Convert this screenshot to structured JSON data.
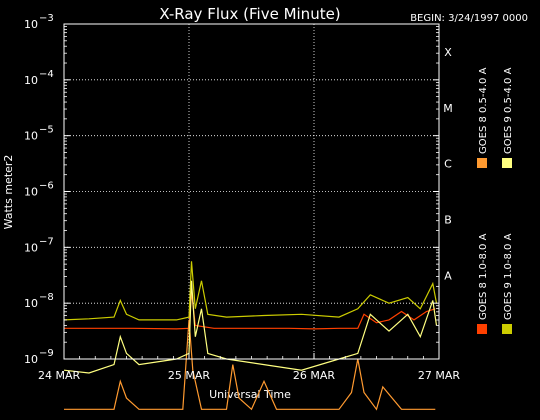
{
  "chart_data": {
    "type": "line",
    "title": "X-Ray Flux (Five Minute)",
    "begin_label": "BEGIN: 3/24/1997 0000",
    "xlabel": "Universal Time",
    "ylabel": "Watts meter2",
    "y_scale": "log",
    "ylim": [
      1e-09,
      0.001
    ],
    "xlim_days": [
      0,
      3
    ],
    "x_ticks": [
      {
        "day": 0,
        "label": "24 MAR"
      },
      {
        "day": 1,
        "label": "25 MAR"
      },
      {
        "day": 2,
        "label": "26 MAR"
      },
      {
        "day": 3,
        "label": "27 MAR"
      }
    ],
    "y_ticks": [
      {
        "exp": -9,
        "mantissa": "10",
        "power": "−9"
      },
      {
        "exp": -8,
        "mantissa": "10",
        "power": "−8"
      },
      {
        "exp": -7,
        "mantissa": "10",
        "power": "−7"
      },
      {
        "exp": -6,
        "mantissa": "10",
        "power": "−6"
      },
      {
        "exp": -5,
        "mantissa": "10",
        "power": "−5"
      },
      {
        "exp": -4,
        "mantissa": "10",
        "power": "−4"
      },
      {
        "exp": -3,
        "mantissa": "10",
        "power": "−3"
      }
    ],
    "flare_classes": [
      {
        "label": "A",
        "exp": -7.5
      },
      {
        "label": "B",
        "exp": -6.5
      },
      {
        "label": "C",
        "exp": -5.5
      },
      {
        "label": "M",
        "exp": -4.5
      },
      {
        "label": "X",
        "exp": -3.5
      }
    ],
    "grid": true,
    "legend_placement": "right",
    "series": [
      {
        "name": "GOES 8 1.0-8.0 A",
        "color": "#ff4000",
        "points": [
          [
            0,
            -8.45
          ],
          [
            0.3,
            -8.45
          ],
          [
            0.55,
            -8.45
          ],
          [
            0.9,
            -8.46
          ],
          [
            1.0,
            -8.45
          ],
          [
            1.02,
            -7.8
          ],
          [
            1.05,
            -8.4
          ],
          [
            1.2,
            -8.45
          ],
          [
            1.4,
            -8.45
          ],
          [
            1.6,
            -8.45
          ],
          [
            1.8,
            -8.45
          ],
          [
            2.0,
            -8.46
          ],
          [
            2.2,
            -8.45
          ],
          [
            2.35,
            -8.45
          ],
          [
            2.4,
            -8.2
          ],
          [
            2.5,
            -8.35
          ],
          [
            2.6,
            -8.3
          ],
          [
            2.7,
            -8.15
          ],
          [
            2.8,
            -8.3
          ],
          [
            2.9,
            -8.15
          ],
          [
            2.97,
            -8.1
          ]
        ]
      },
      {
        "name": "GOES 8 0.5-4.0 A",
        "color": "#ff9a30",
        "points": [
          [
            0,
            -9.9
          ],
          [
            0.4,
            -9.9
          ],
          [
            0.45,
            -9.4
          ],
          [
            0.5,
            -9.7
          ],
          [
            0.6,
            -9.9
          ],
          [
            0.95,
            -9.9
          ],
          [
            1.0,
            -8.3
          ],
          [
            1.03,
            -9.2
          ],
          [
            1.1,
            -9.9
          ],
          [
            1.3,
            -9.9
          ],
          [
            1.35,
            -9.1
          ],
          [
            1.4,
            -9.7
          ],
          [
            1.5,
            -9.9
          ],
          [
            1.6,
            -9.4
          ],
          [
            1.7,
            -9.9
          ],
          [
            2.2,
            -9.9
          ],
          [
            2.3,
            -9.6
          ],
          [
            2.35,
            -9.0
          ],
          [
            2.4,
            -9.6
          ],
          [
            2.5,
            -9.9
          ],
          [
            2.55,
            -9.5
          ],
          [
            2.7,
            -9.9
          ],
          [
            2.97,
            -9.9
          ]
        ]
      },
      {
        "name": "GOES 9 1.0-8.0 A",
        "color": "#cccc00",
        "points": [
          [
            0,
            -8.3
          ],
          [
            0.2,
            -8.28
          ],
          [
            0.4,
            -8.25
          ],
          [
            0.45,
            -7.95
          ],
          [
            0.5,
            -8.2
          ],
          [
            0.6,
            -8.3
          ],
          [
            0.9,
            -8.3
          ],
          [
            1.0,
            -8.25
          ],
          [
            1.02,
            -7.25
          ],
          [
            1.05,
            -8.1
          ],
          [
            1.1,
            -7.6
          ],
          [
            1.15,
            -8.2
          ],
          [
            1.3,
            -8.25
          ],
          [
            1.6,
            -8.22
          ],
          [
            1.9,
            -8.2
          ],
          [
            2.2,
            -8.25
          ],
          [
            2.35,
            -8.1
          ],
          [
            2.45,
            -7.85
          ],
          [
            2.6,
            -8.0
          ],
          [
            2.75,
            -7.9
          ],
          [
            2.85,
            -8.1
          ],
          [
            2.95,
            -7.65
          ],
          [
            2.98,
            -8.0
          ]
        ]
      },
      {
        "name": "GOES 9 0.5-4.0 A",
        "color": "#ffff80",
        "points": [
          [
            0,
            -9.2
          ],
          [
            0.2,
            -9.25
          ],
          [
            0.4,
            -9.1
          ],
          [
            0.45,
            -8.6
          ],
          [
            0.5,
            -8.9
          ],
          [
            0.6,
            -9.1
          ],
          [
            0.9,
            -9.0
          ],
          [
            1.0,
            -8.9
          ],
          [
            1.02,
            -7.6
          ],
          [
            1.05,
            -8.6
          ],
          [
            1.1,
            -8.1
          ],
          [
            1.15,
            -8.9
          ],
          [
            1.3,
            -9.0
          ],
          [
            1.6,
            -9.1
          ],
          [
            1.9,
            -9.2
          ],
          [
            2.2,
            -9.0
          ],
          [
            2.35,
            -8.9
          ],
          [
            2.45,
            -8.2
          ],
          [
            2.6,
            -8.5
          ],
          [
            2.75,
            -8.2
          ],
          [
            2.85,
            -8.6
          ],
          [
            2.95,
            -7.95
          ],
          [
            2.98,
            -8.4
          ]
        ]
      }
    ]
  }
}
